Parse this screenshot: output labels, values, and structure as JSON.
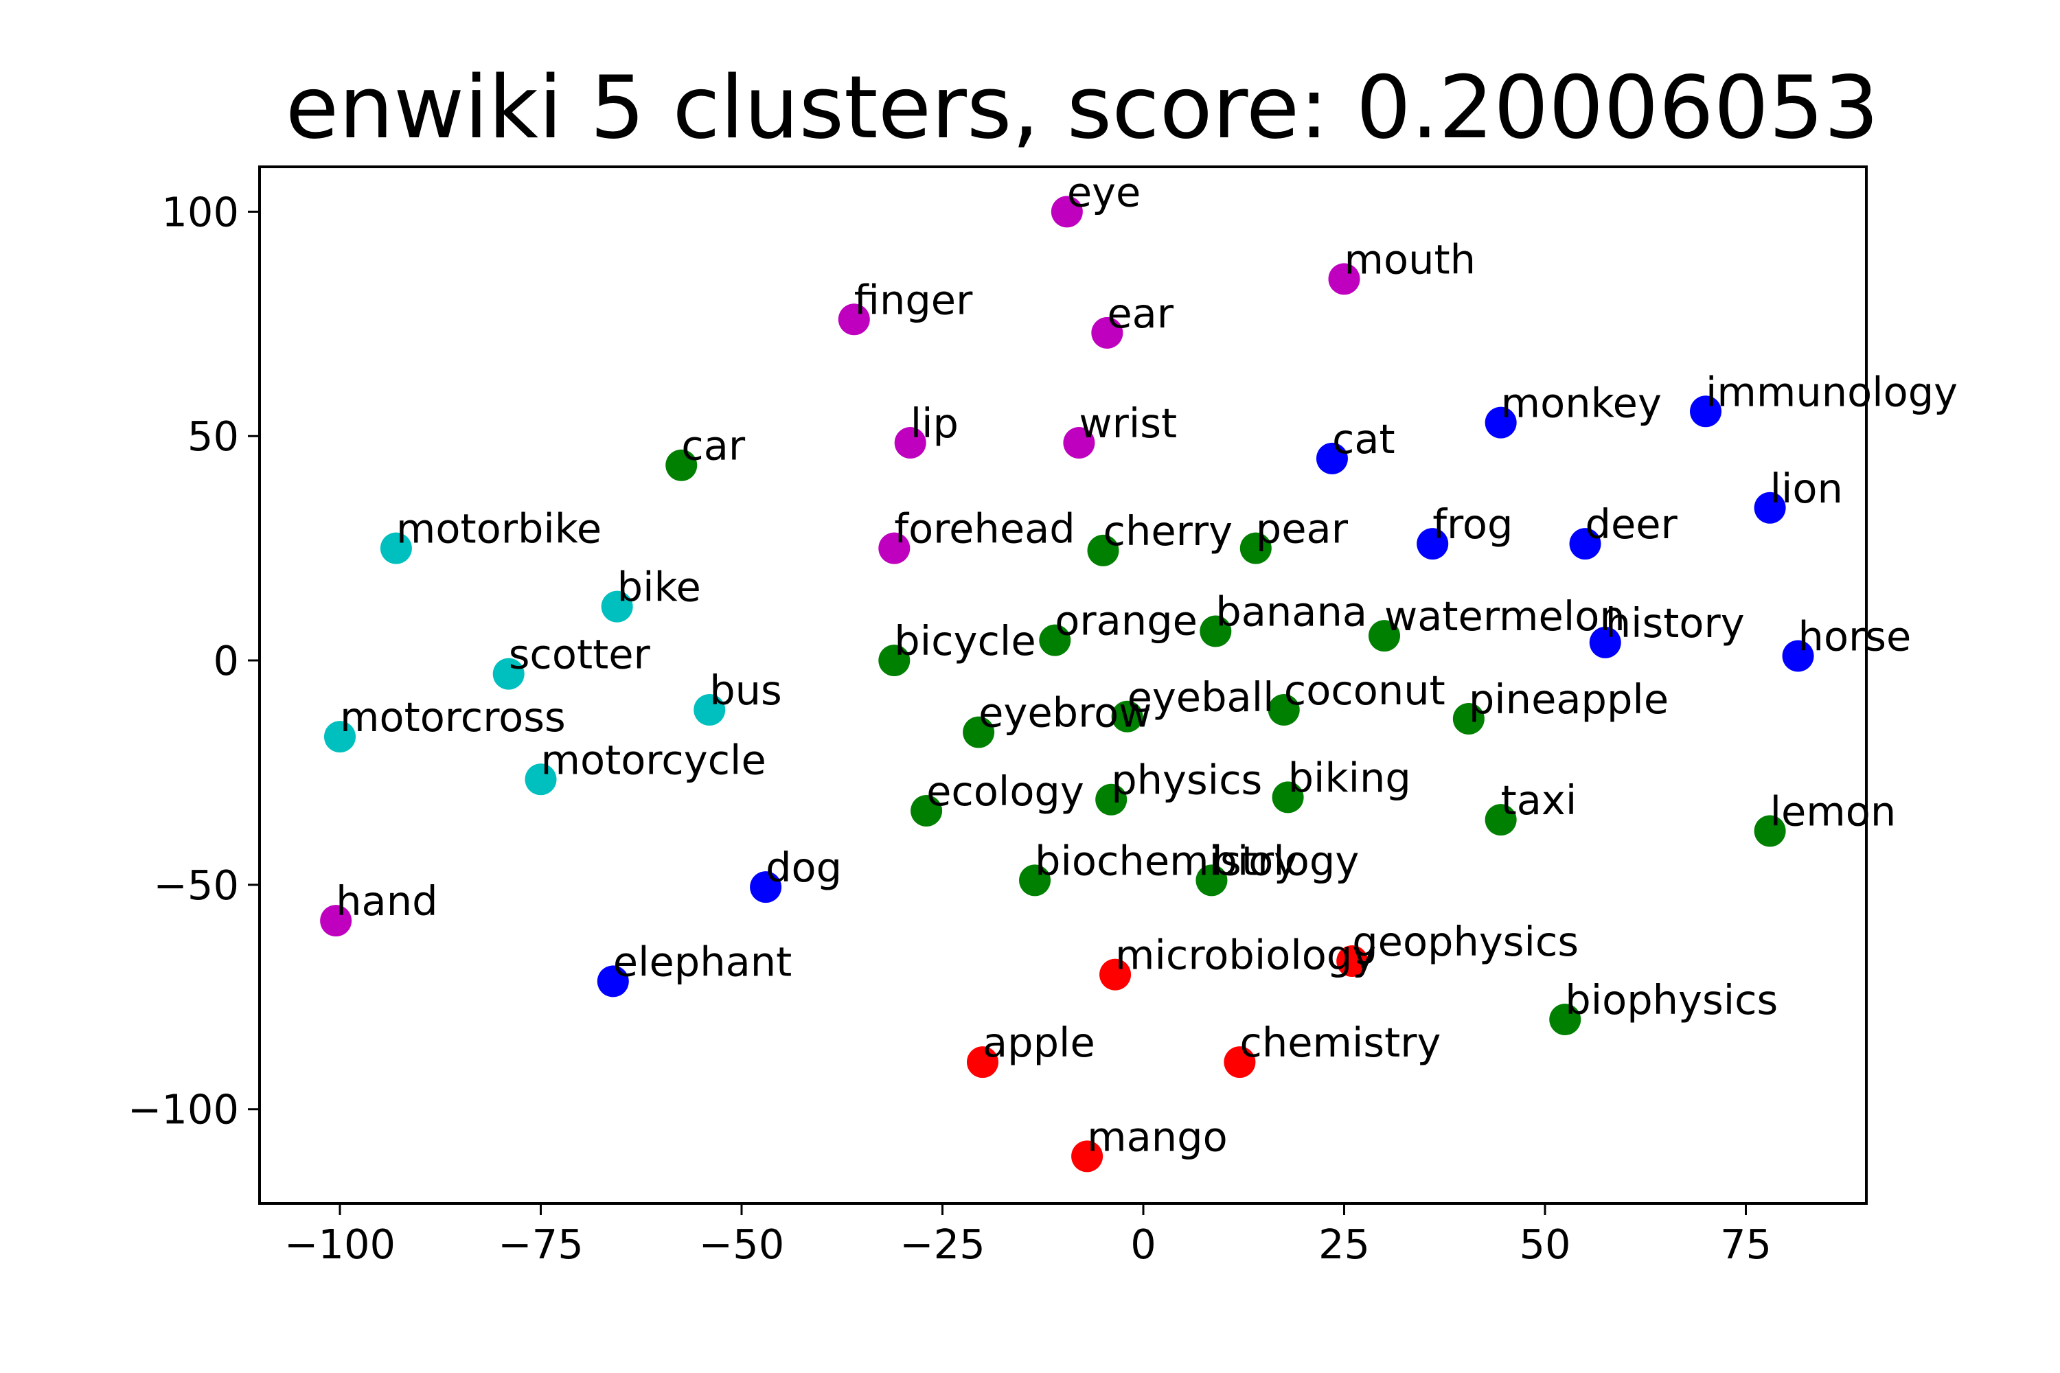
{
  "chart_data": {
    "type": "scatter",
    "title": "enwiki 5 clusters, score: 0.20006053",
    "xlabel": "",
    "ylabel": "",
    "xlim": [
      -110,
      90
    ],
    "ylim": [
      -121,
      110
    ],
    "x_ticks": [
      -100,
      -75,
      -50,
      -25,
      0,
      25,
      50,
      75
    ],
    "y_ticks": [
      100,
      50,
      0,
      -50,
      -100
    ],
    "x_tick_labels": [
      "−100",
      "−75",
      "−50",
      "−25",
      "0",
      "25",
      "50",
      "75"
    ],
    "y_tick_labels": [
      "100",
      "50",
      "0",
      "−50",
      "−100"
    ],
    "grid": false,
    "cluster_colors": {
      "green": "#008000",
      "blue": "#0000ff",
      "magenta": "#bf00bf",
      "cyan": "#00bfbf",
      "red": "#ff0000"
    },
    "points": [
      {
        "label": "eye",
        "x": -9.5,
        "y": 100,
        "cluster": "magenta"
      },
      {
        "label": "mouth",
        "x": 25,
        "y": 85,
        "cluster": "magenta"
      },
      {
        "label": "finger",
        "x": -36,
        "y": 76,
        "cluster": "magenta"
      },
      {
        "label": "ear",
        "x": -4.5,
        "y": 73,
        "cluster": "magenta"
      },
      {
        "label": "lip",
        "x": -29,
        "y": 48.5,
        "cluster": "magenta"
      },
      {
        "label": "wrist",
        "x": -8,
        "y": 48.5,
        "cluster": "magenta"
      },
      {
        "label": "forehead",
        "x": -31,
        "y": 25,
        "cluster": "magenta"
      },
      {
        "label": "hand",
        "x": -100.5,
        "y": -58,
        "cluster": "magenta"
      },
      {
        "label": "monkey",
        "x": 44.5,
        "y": 53,
        "cluster": "blue"
      },
      {
        "label": "immunology",
        "x": 70,
        "y": 55.5,
        "cluster": "blue"
      },
      {
        "label": "cat",
        "x": 23.5,
        "y": 45,
        "cluster": "blue"
      },
      {
        "label": "lion",
        "x": 78,
        "y": 34,
        "cluster": "blue"
      },
      {
        "label": "frog",
        "x": 36,
        "y": 26,
        "cluster": "blue"
      },
      {
        "label": "deer",
        "x": 55,
        "y": 26,
        "cluster": "blue"
      },
      {
        "label": "history",
        "x": 57.5,
        "y": 4,
        "cluster": "blue"
      },
      {
        "label": "horse",
        "x": 81.5,
        "y": 1,
        "cluster": "blue"
      },
      {
        "label": "dog",
        "x": -47,
        "y": -50.5,
        "cluster": "blue"
      },
      {
        "label": "elephant",
        "x": -66,
        "y": -71.5,
        "cluster": "blue"
      },
      {
        "label": "car",
        "x": -57.5,
        "y": 43.5,
        "cluster": "green"
      },
      {
        "label": "cherry",
        "x": -5,
        "y": 24.5,
        "cluster": "green"
      },
      {
        "label": "pear",
        "x": 14,
        "y": 25,
        "cluster": "green"
      },
      {
        "label": "orange",
        "x": -11,
        "y": 4.5,
        "cluster": "green"
      },
      {
        "label": "banana",
        "x": 9,
        "y": 6.5,
        "cluster": "green"
      },
      {
        "label": "watermelon",
        "x": 30,
        "y": 5.5,
        "cluster": "green"
      },
      {
        "label": "bicycle",
        "x": -31,
        "y": 0,
        "cluster": "green"
      },
      {
        "label": "eyebrow",
        "x": -20.5,
        "y": -16,
        "cluster": "green"
      },
      {
        "label": "eyeball",
        "x": -2,
        "y": -12.5,
        "cluster": "green"
      },
      {
        "label": "coconut",
        "x": 17.5,
        "y": -11,
        "cluster": "green"
      },
      {
        "label": "pineapple",
        "x": 40.5,
        "y": -13,
        "cluster": "green"
      },
      {
        "label": "ecology",
        "x": -27,
        "y": -33.5,
        "cluster": "green"
      },
      {
        "label": "physics",
        "x": -4,
        "y": -31,
        "cluster": "green"
      },
      {
        "label": "biking",
        "x": 18,
        "y": -30.5,
        "cluster": "green"
      },
      {
        "label": "taxi",
        "x": 44.5,
        "y": -35.5,
        "cluster": "green"
      },
      {
        "label": "lemon",
        "x": 78,
        "y": -38,
        "cluster": "green"
      },
      {
        "label": "biochemistry",
        "x": -13.5,
        "y": -49,
        "cluster": "green"
      },
      {
        "label": "biology",
        "x": 8.5,
        "y": -49,
        "cluster": "green"
      },
      {
        "label": "biophysics",
        "x": 52.5,
        "y": -80,
        "cluster": "green"
      },
      {
        "label": "motorbike",
        "x": -93,
        "y": 25,
        "cluster": "cyan"
      },
      {
        "label": "bike",
        "x": -65.5,
        "y": 12,
        "cluster": "cyan"
      },
      {
        "label": "scotter",
        "x": -79,
        "y": -3,
        "cluster": "cyan"
      },
      {
        "label": "bus",
        "x": -54,
        "y": -11,
        "cluster": "cyan"
      },
      {
        "label": "motorcross",
        "x": -100,
        "y": -17,
        "cluster": "cyan"
      },
      {
        "label": "motorcycle",
        "x": -75,
        "y": -26.5,
        "cluster": "cyan"
      },
      {
        "label": "microbiology",
        "x": -3.5,
        "y": -70,
        "cluster": "red"
      },
      {
        "label": "geophysics",
        "x": 26,
        "y": -67,
        "cluster": "red"
      },
      {
        "label": "apple",
        "x": -20,
        "y": -89.5,
        "cluster": "red"
      },
      {
        "label": "chemistry",
        "x": 12,
        "y": -89.5,
        "cluster": "red"
      },
      {
        "label": "mango",
        "x": -7,
        "y": -110.5,
        "cluster": "red"
      }
    ]
  }
}
